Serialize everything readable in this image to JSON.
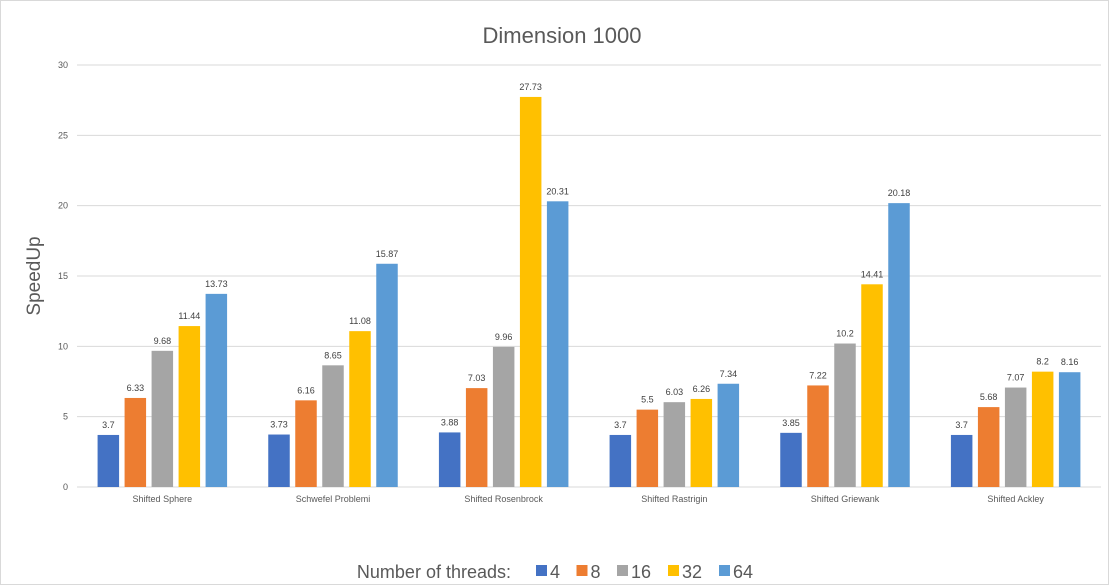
{
  "chart_data": {
    "type": "bar",
    "title": "Dimension 1000",
    "xlabel": "",
    "ylabel": "SpeedUp",
    "ylim": [
      0,
      30
    ],
    "yticks": [
      0,
      5,
      10,
      15,
      20,
      25,
      30
    ],
    "grid": true,
    "legend_position": "bottom",
    "legend_title": "Number of threads:",
    "categories": [
      "Shifted Sphere",
      "Schwefel Problemi",
      "Shifted Rosenbrock",
      "Shifted Rastrigin",
      "Shifted Griewank",
      "Shifted Ackley"
    ],
    "series": [
      {
        "name": "4",
        "color": "#4472C4",
        "values": [
          3.7,
          3.73,
          3.88,
          3.7,
          3.85,
          3.7
        ]
      },
      {
        "name": "8",
        "color": "#ED7D31",
        "values": [
          6.33,
          6.16,
          7.03,
          5.5,
          7.22,
          5.68
        ]
      },
      {
        "name": "16",
        "color": "#A5A5A5",
        "values": [
          9.68,
          8.65,
          9.96,
          6.03,
          10.2,
          7.07
        ]
      },
      {
        "name": "32",
        "color": "#FFC000",
        "values": [
          11.44,
          11.08,
          27.73,
          6.26,
          14.41,
          8.2
        ]
      },
      {
        "name": "64",
        "color": "#5B9BD5",
        "values": [
          13.73,
          15.87,
          20.31,
          7.34,
          20.18,
          8.16
        ]
      }
    ]
  }
}
